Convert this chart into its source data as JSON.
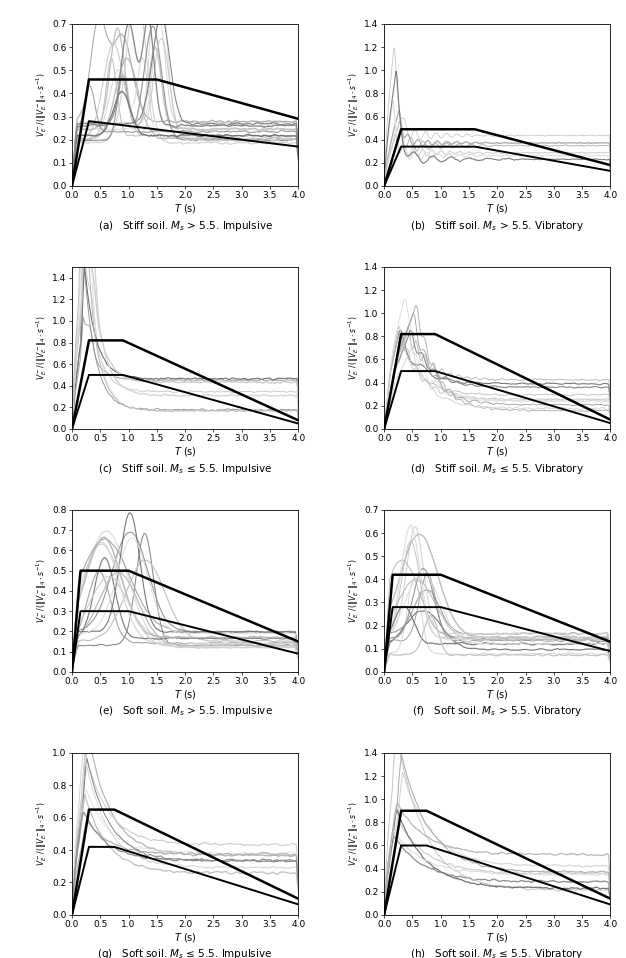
{
  "subplots": [
    {
      "label": "(a)   Stiff soil. $M_s$ > 5.5. Impulsive",
      "ylim": [
        0,
        0.7
      ],
      "ytick_step": 0.1,
      "col": 0,
      "row": 0,
      "env1": [
        0.0,
        0.3,
        1.5,
        4.0
      ],
      "env1_v": [
        0.0,
        0.46,
        0.46,
        0.29
      ],
      "env2": [
        0.0,
        0.3,
        4.0
      ],
      "env2_v": [
        0.0,
        0.28,
        0.17
      ]
    },
    {
      "label": "(b)   Stiff soil. $M_s$ > 5.5. Vibratory",
      "ylim": [
        0,
        1.4
      ],
      "ytick_step": 0.2,
      "col": 1,
      "row": 0,
      "env1": [
        0.0,
        0.3,
        1.6,
        4.0
      ],
      "env1_v": [
        0.0,
        0.49,
        0.49,
        0.18
      ],
      "env2": [
        0.0,
        0.3,
        1.6,
        4.0
      ],
      "env2_v": [
        0.0,
        0.34,
        0.34,
        0.13
      ]
    },
    {
      "label": "(c)   Stiff soil. $M_s$ ≤ 5.5. Impulsive",
      "ylim": [
        0,
        1.5
      ],
      "ytick_step": 0.2,
      "col": 0,
      "row": 1,
      "env1": [
        0.0,
        0.3,
        0.9,
        4.0
      ],
      "env1_v": [
        0.0,
        0.82,
        0.82,
        0.08
      ],
      "env2": [
        0.0,
        0.3,
        0.9,
        4.0
      ],
      "env2_v": [
        0.0,
        0.5,
        0.5,
        0.05
      ]
    },
    {
      "label": "(d)   Stiff soil. $M_s$ ≤ 5.5. Vibratory",
      "ylim": [
        0,
        1.4
      ],
      "ytick_step": 0.2,
      "col": 1,
      "row": 1,
      "env1": [
        0.0,
        0.3,
        0.9,
        4.0
      ],
      "env1_v": [
        0.0,
        0.82,
        0.82,
        0.08
      ],
      "env2": [
        0.0,
        0.3,
        0.9,
        4.0
      ],
      "env2_v": [
        0.0,
        0.5,
        0.5,
        0.05
      ]
    },
    {
      "label": "(e)   Soft soil. $M_s$ > 5.5. Impulsive",
      "ylim": [
        0,
        0.8
      ],
      "ytick_step": 0.1,
      "col": 0,
      "row": 2,
      "env1": [
        0.0,
        0.15,
        1.0,
        4.0
      ],
      "env1_v": [
        0.0,
        0.5,
        0.5,
        0.15
      ],
      "env2": [
        0.0,
        0.15,
        1.0,
        4.0
      ],
      "env2_v": [
        0.0,
        0.3,
        0.3,
        0.09
      ]
    },
    {
      "label": "(f)   Soft soil. $M_s$ > 5.5. Vibratory",
      "ylim": [
        0,
        0.7
      ],
      "ytick_step": 0.1,
      "col": 1,
      "row": 2,
      "env1": [
        0.0,
        0.15,
        1.0,
        4.0
      ],
      "env1_v": [
        0.0,
        0.42,
        0.42,
        0.13
      ],
      "env2": [
        0.0,
        0.15,
        1.0,
        4.0
      ],
      "env2_v": [
        0.0,
        0.28,
        0.28,
        0.09
      ]
    },
    {
      "label": "(g)   Soft soil. $M_s$ ≤ 5.5. Impulsive",
      "ylim": [
        0,
        1.0
      ],
      "ytick_step": 0.2,
      "col": 0,
      "row": 3,
      "env1": [
        0.0,
        0.3,
        0.75,
        4.0
      ],
      "env1_v": [
        0.0,
        0.65,
        0.65,
        0.1
      ],
      "env2": [
        0.0,
        0.3,
        0.75,
        4.0
      ],
      "env2_v": [
        0.0,
        0.42,
        0.42,
        0.065
      ]
    },
    {
      "label": "(h)   Soft soil. $M_s$ ≤ 5.5. Vibratory",
      "ylim": [
        0,
        1.4
      ],
      "ytick_step": 0.2,
      "col": 1,
      "row": 3,
      "env1": [
        0.0,
        0.3,
        0.75,
        4.0
      ],
      "env1_v": [
        0.0,
        0.9,
        0.9,
        0.14
      ],
      "env2": [
        0.0,
        0.3,
        0.75,
        4.0
      ],
      "env2_v": [
        0.0,
        0.6,
        0.6,
        0.09
      ]
    }
  ],
  "xlim": [
    0,
    4
  ],
  "xticks": [
    0,
    0.5,
    1,
    1.5,
    2,
    2.5,
    3,
    3.5,
    4
  ],
  "xlabel": "$T$ (s)"
}
